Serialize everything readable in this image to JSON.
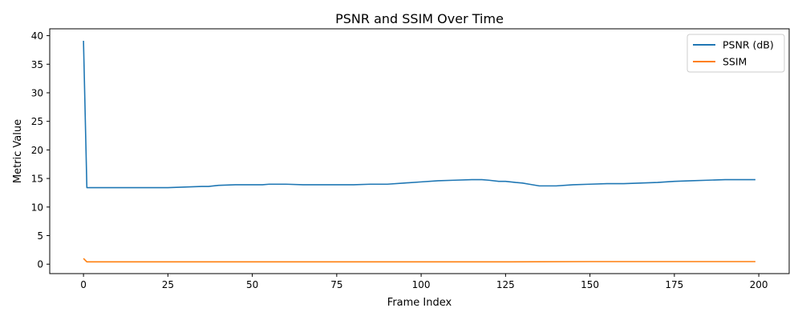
{
  "chart_data": {
    "type": "line",
    "title": "PSNR and SSIM Over Time",
    "xlabel": "Frame Index",
    "ylabel": "Metric Value",
    "xlim": [
      -10,
      209
    ],
    "ylim": [
      -1.65,
      41.2
    ],
    "xticks": [
      0,
      25,
      50,
      75,
      100,
      125,
      150,
      175,
      200
    ],
    "yticks": [
      0,
      5,
      10,
      15,
      20,
      25,
      30,
      35,
      40
    ],
    "grid": false,
    "legend_position": "top-right",
    "colors": {
      "psnr": "#1f77b4",
      "ssim": "#ff7f0e"
    },
    "series": [
      {
        "name": "PSNR (dB)",
        "points": [
          [
            0,
            39.1
          ],
          [
            1,
            13.4
          ],
          [
            5,
            13.4
          ],
          [
            10,
            13.4
          ],
          [
            15,
            13.4
          ],
          [
            20,
            13.4
          ],
          [
            25,
            13.4
          ],
          [
            30,
            13.5
          ],
          [
            35,
            13.6
          ],
          [
            37,
            13.6
          ],
          [
            40,
            13.8
          ],
          [
            45,
            13.9
          ],
          [
            50,
            13.9
          ],
          [
            53,
            13.9
          ],
          [
            55,
            14.0
          ],
          [
            60,
            14.0
          ],
          [
            65,
            13.9
          ],
          [
            70,
            13.9
          ],
          [
            75,
            13.9
          ],
          [
            80,
            13.9
          ],
          [
            85,
            14.0
          ],
          [
            90,
            14.0
          ],
          [
            95,
            14.2
          ],
          [
            100,
            14.4
          ],
          [
            105,
            14.6
          ],
          [
            110,
            14.7
          ],
          [
            115,
            14.8
          ],
          [
            118,
            14.8
          ],
          [
            120,
            14.7
          ],
          [
            123,
            14.5
          ],
          [
            125,
            14.5
          ],
          [
            128,
            14.3
          ],
          [
            130,
            14.2
          ],
          [
            132,
            14.0
          ],
          [
            135,
            13.7
          ],
          [
            140,
            13.7
          ],
          [
            145,
            13.9
          ],
          [
            150,
            14.0
          ],
          [
            155,
            14.1
          ],
          [
            160,
            14.1
          ],
          [
            165,
            14.2
          ],
          [
            170,
            14.3
          ],
          [
            175,
            14.5
          ],
          [
            180,
            14.6
          ],
          [
            185,
            14.7
          ],
          [
            190,
            14.8
          ],
          [
            195,
            14.8
          ],
          [
            199,
            14.8
          ]
        ]
      },
      {
        "name": "SSIM",
        "points": [
          [
            0,
            1.0
          ],
          [
            1,
            0.4
          ],
          [
            25,
            0.4
          ],
          [
            50,
            0.4
          ],
          [
            75,
            0.4
          ],
          [
            100,
            0.4
          ],
          [
            125,
            0.4
          ],
          [
            150,
            0.45
          ],
          [
            175,
            0.45
          ],
          [
            199,
            0.45
          ]
        ]
      }
    ]
  }
}
